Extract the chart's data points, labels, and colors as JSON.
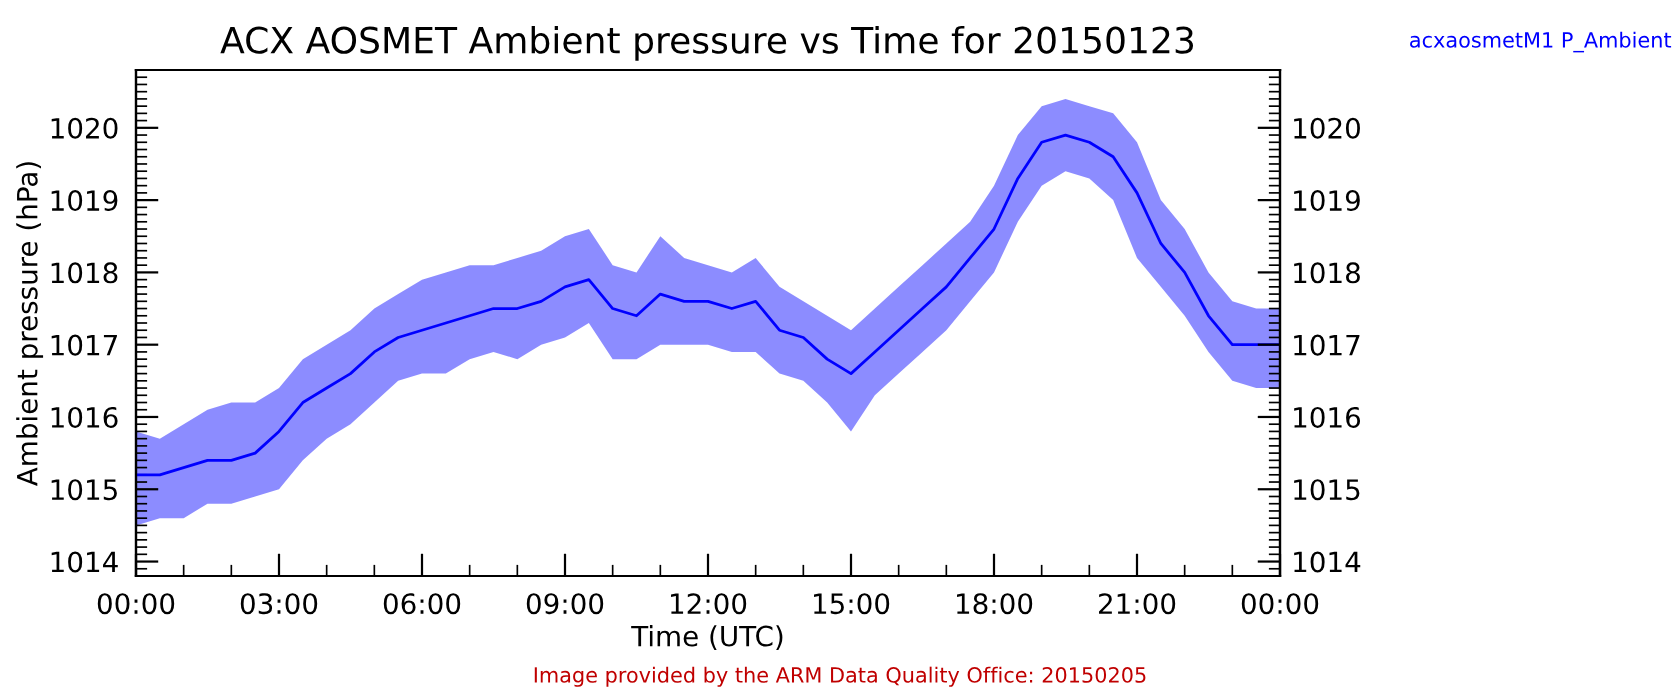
{
  "chart_data": {
    "type": "line",
    "title": "ACX AOSMET Ambient pressure vs Time for 20150123",
    "xlabel": "Time (UTC)",
    "ylabel": "Ambient pressure (hPa)",
    "annotations": [
      "Image provided by the ARM Data Quality Office: 20150205"
    ],
    "x": [
      0,
      0.5,
      1,
      1.5,
      2,
      2.5,
      3,
      3.5,
      4,
      4.5,
      5,
      5.5,
      6,
      6.5,
      7,
      7.5,
      8,
      8.5,
      9,
      9.5,
      10,
      10.5,
      11,
      11.5,
      12,
      12.5,
      13,
      13.5,
      14,
      14.5,
      15,
      15.5,
      16,
      16.5,
      17,
      17.5,
      18,
      18.5,
      19,
      19.5,
      20,
      20.5,
      21,
      21.5,
      22,
      22.5,
      23,
      23.5,
      24
    ],
    "series": [
      {
        "name": "acxaosmetM1 P_Ambient",
        "color": "#0000ff",
        "values": [
          1015.2,
          1015.2,
          1015.3,
          1015.4,
          1015.4,
          1015.5,
          1015.8,
          1016.2,
          1016.4,
          1016.6,
          1016.9,
          1017.1,
          1017.2,
          1017.3,
          1017.4,
          1017.5,
          1017.5,
          1017.6,
          1017.8,
          1017.9,
          1017.5,
          1017.4,
          1017.7,
          1017.6,
          1017.6,
          1017.5,
          1017.6,
          1017.2,
          1017.1,
          1016.8,
          1016.6,
          1016.9,
          1017.2,
          1017.5,
          1017.8,
          1018.2,
          1018.6,
          1019.3,
          1019.8,
          1019.9,
          1019.8,
          1019.6,
          1019.1,
          1018.4,
          1018.0,
          1017.4,
          1017.0,
          1017.0,
          1017.0
        ],
        "lower": [
          1014.5,
          1014.6,
          1014.6,
          1014.8,
          1014.8,
          1014.9,
          1015.0,
          1015.4,
          1015.7,
          1015.9,
          1016.2,
          1016.5,
          1016.6,
          1016.6,
          1016.8,
          1016.9,
          1016.8,
          1017.0,
          1017.1,
          1017.3,
          1016.8,
          1016.8,
          1017.0,
          1017.0,
          1017.0,
          1016.9,
          1016.9,
          1016.6,
          1016.5,
          1016.2,
          1015.8,
          1016.3,
          1016.6,
          1016.9,
          1017.2,
          1017.6,
          1018.0,
          1018.7,
          1019.2,
          1019.4,
          1019.3,
          1019.0,
          1018.2,
          1017.8,
          1017.4,
          1016.9,
          1016.5,
          1016.4,
          1016.4
        ],
        "upper": [
          1015.8,
          1015.7,
          1015.9,
          1016.1,
          1016.2,
          1016.2,
          1016.4,
          1016.8,
          1017.0,
          1017.2,
          1017.5,
          1017.7,
          1017.9,
          1018.0,
          1018.1,
          1018.1,
          1018.2,
          1018.3,
          1018.5,
          1018.6,
          1018.1,
          1018.0,
          1018.5,
          1018.2,
          1018.1,
          1018.0,
          1018.2,
          1017.8,
          1017.6,
          1017.4,
          1017.2,
          1017.5,
          1017.8,
          1018.1,
          1018.4,
          1018.7,
          1019.2,
          1019.9,
          1020.3,
          1020.4,
          1020.3,
          1020.2,
          1019.8,
          1019.0,
          1018.6,
          1018.0,
          1017.6,
          1017.5,
          1017.5
        ]
      }
    ],
    "xlim": [
      0,
      24
    ],
    "xticks": [
      {
        "value": 0,
        "label": "00:00"
      },
      {
        "value": 3,
        "label": "03:00"
      },
      {
        "value": 6,
        "label": "06:00"
      },
      {
        "value": 9,
        "label": "09:00"
      },
      {
        "value": 12,
        "label": "12:00"
      },
      {
        "value": 15,
        "label": "15:00"
      },
      {
        "value": 18,
        "label": "18:00"
      },
      {
        "value": 21,
        "label": "21:00"
      },
      {
        "value": 24,
        "label": "00:00"
      }
    ],
    "ylim": [
      1013.8,
      1020.8
    ],
    "yticks": [
      1014,
      1015,
      1016,
      1017,
      1018,
      1019,
      1020
    ],
    "y2lim": [
      1013.8,
      1020.8
    ],
    "y2ticks": [
      1014,
      1015,
      1016,
      1017,
      1018,
      1019,
      1020
    ],
    "grid": false,
    "legend": "top right",
    "marker": "none",
    "line_style": "solid"
  }
}
